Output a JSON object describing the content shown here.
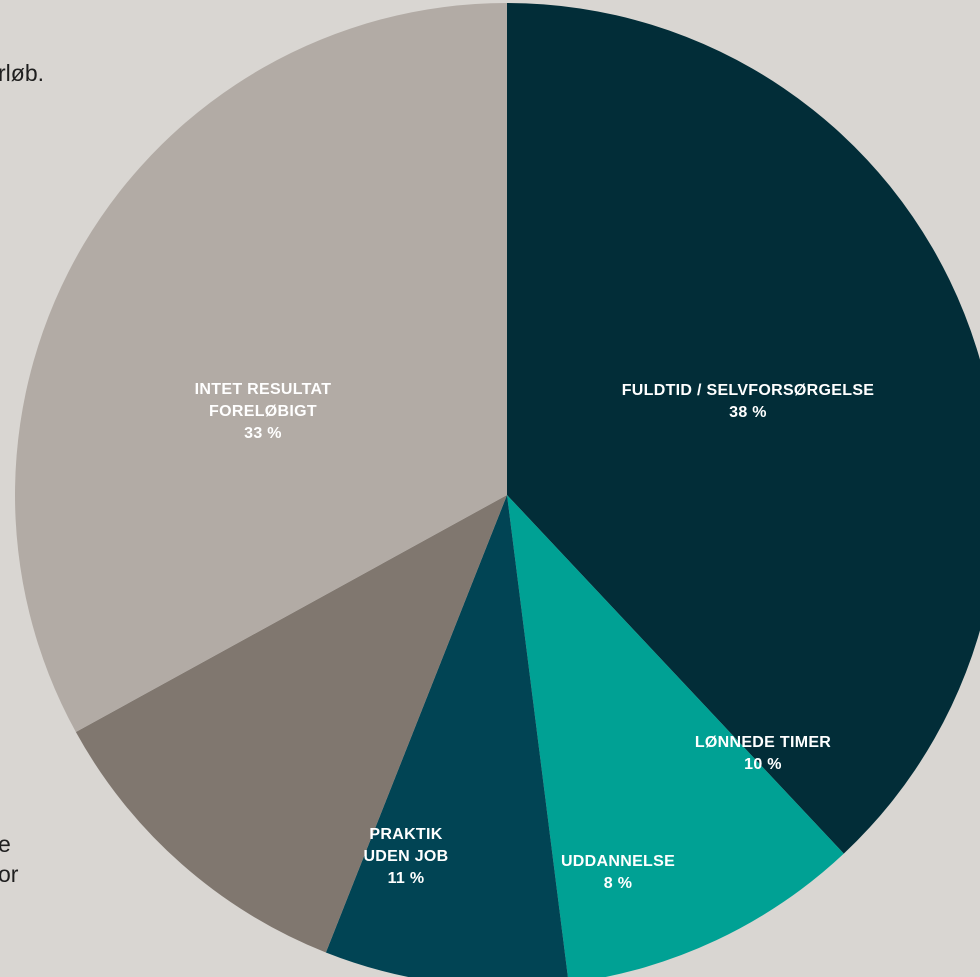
{
  "background_text": {
    "line1": "rløb.",
    "line2": "e",
    "line3": "or"
  },
  "colors": {
    "background": "#d9d6d2",
    "text": "#ffffff"
  },
  "chart_data": {
    "type": "pie",
    "title": "",
    "start": "12 o'clock",
    "direction": "clockwise",
    "slices": [
      {
        "label_lines": [
          "FULDTID / SELVFORSØRGELSE"
        ],
        "value": 38,
        "value_label": "38 %",
        "color": "#022d38"
      },
      {
        "label_lines": [
          "LØNNEDE TIMER"
        ],
        "value": 10,
        "value_label": "10 %",
        "color": "#00a194"
      },
      {
        "label_lines": [
          "UDDANNELSE"
        ],
        "value": 8,
        "value_label": "8 %",
        "color": "#014454"
      },
      {
        "label_lines": [
          "PRAKTIK",
          "UDEN JOB"
        ],
        "value": 11,
        "value_label": "11 %",
        "color": "#80776f"
      },
      {
        "label_lines": [
          "INTET RESULTAT",
          "FORELØBIGT"
        ],
        "value": 33,
        "value_label": "33 %",
        "color": "#b2aba5"
      }
    ]
  }
}
